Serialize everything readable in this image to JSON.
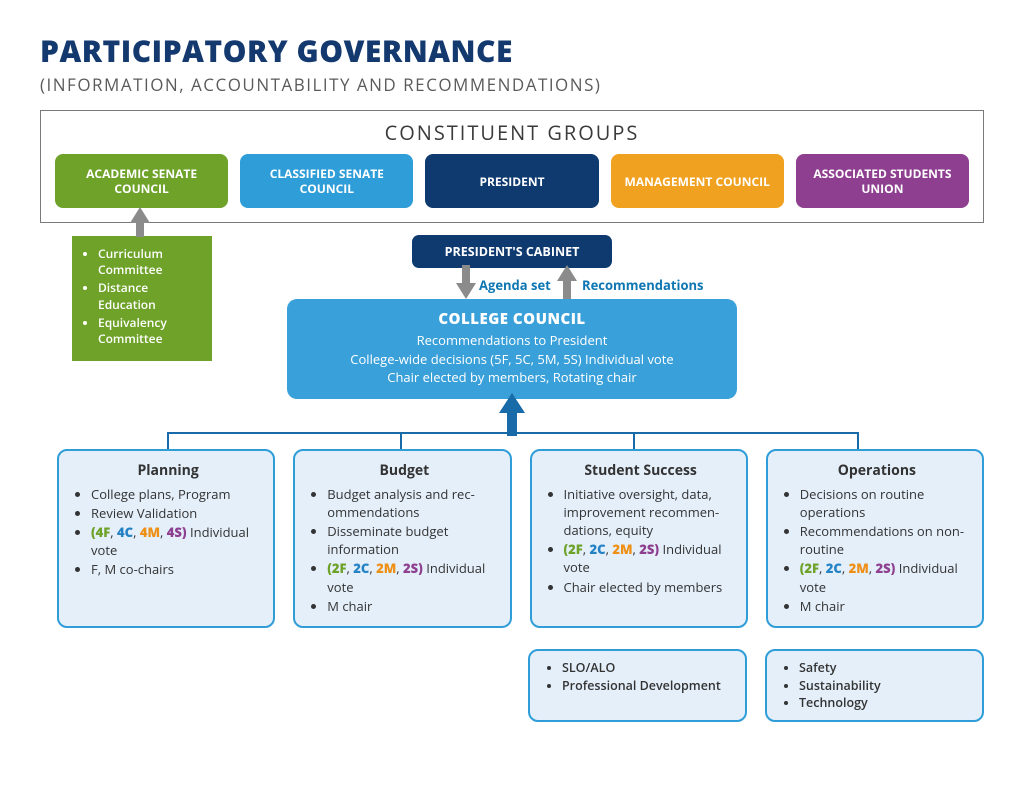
{
  "colors": {
    "title": "#13396f",
    "subtitle": "#5a5a5a",
    "const_heading": "#3a3a3a",
    "border_gray": "#7a7a7a",
    "arrow_gray": "#8b8b8b",
    "accent_blue": "#0e77b3",
    "light_blue_bg": "#e4effa",
    "light_blue_border": "#2f9dd8",
    "group_green": "#6ea229",
    "group_lightblue": "#2f9dd8",
    "group_darkblue": "#0e3a70",
    "group_orange": "#f0a11f",
    "group_purple": "#8f3f90",
    "council_bg": "#3aa0d9",
    "code_green": "#6ea229",
    "code_blue": "#2583c5",
    "code_orange": "#ee9016",
    "code_purple": "#8f3f90"
  },
  "header": {
    "title": "PARTICIPATORY GOVERNANCE",
    "subtitle": "(INFORMATION, ACCOUNTABILITY AND RECOMMENDATIONS)",
    "title_fontsize": 30,
    "subtitle_fontsize": 17
  },
  "constituent": {
    "heading": "CONSTITUENT GROUPS",
    "heading_fontsize": 20,
    "groups": [
      {
        "label": "ACADEMIC  SENATE COUNCIL",
        "color_key": "group_green"
      },
      {
        "label": "CLASSIFIED SENATE COUNCIL",
        "color_key": "group_lightblue"
      },
      {
        "label": "PRESIDENT",
        "color_key": "group_darkblue"
      },
      {
        "label": "MANAGEMENT COUNCIL",
        "color_key": "group_orange"
      },
      {
        "label": "ASSOCIATED STUDENTS UNION",
        "color_key": "group_purple"
      }
    ]
  },
  "asc_sub": {
    "items": [
      "Curriculum Committee",
      "Distance Education",
      "Equivalency Committee"
    ],
    "bg_key": "group_green"
  },
  "cabinet": {
    "label": "PRESIDENT'S CABINET",
    "bg_key": "group_darkblue"
  },
  "flow_labels": {
    "agenda": "Agenda set",
    "recs": "Recommendations",
    "color_key": "accent_blue"
  },
  "council": {
    "title": "COLLEGE COUNCIL",
    "line1": "Recommendations to President",
    "line2": "College-wide decisions (5F, 5C, 5M, 5S) Individual vote",
    "line3": "Chair elected by members, Rotating chair",
    "bg_key": "council_bg"
  },
  "committees": [
    {
      "name": "Planning",
      "bullets_html": [
        "College plans, Program",
        "Review Validation",
        "<span class='code'><b style='color:#6ea229'>(4F</b>, <b style='color:#2583c5'>4C</b>, <b style='color:#ee9016'>4M</b>, <b style='color:#8f3f90'>4S)</b></span> Individual vote",
        "F, M co-chairs"
      ]
    },
    {
      "name": "Budget",
      "bullets_html": [
        "Budget analysis and rec­ommendations",
        "Disseminate budget information",
        "<span class='code'><b style='color:#6ea229'>(2F</b>, <b style='color:#2583c5'>2C</b>, <b style='color:#ee9016'>2M</b>, <b style='color:#8f3f90'>2S)</b></span> Individual vote",
        "M chair"
      ]
    },
    {
      "name": "Student Success",
      "bullets_html": [
        "Initiative oversight, data, improvement recommen­dations, equity",
        "<span class='code'><b style='color:#6ea229'>(2F</b>, <b style='color:#2583c5'>2C</b>, <b style='color:#ee9016'>2M</b>, <b style='color:#8f3f90'>2S)</b></span> Individual vote",
        "Chair elected by members"
      ]
    },
    {
      "name": "Operations",
      "bullets_html": [
        "Decisions on routine operations",
        "Recommendations on non-routine",
        "<span class='code'><b style='color:#6ea229'>(2F</b>, <b style='color:#2583c5'>2C</b>, <b style='color:#ee9016'>2M</b>, <b style='color:#8f3f90'>2S)</b></span> Individual vote",
        "M chair"
      ]
    }
  ],
  "sub_committees": [
    {
      "items": [
        "SLO/ALO",
        "Professional Development"
      ]
    },
    {
      "items": [
        "Safety",
        "Sustainability",
        "Technology"
      ]
    }
  ]
}
